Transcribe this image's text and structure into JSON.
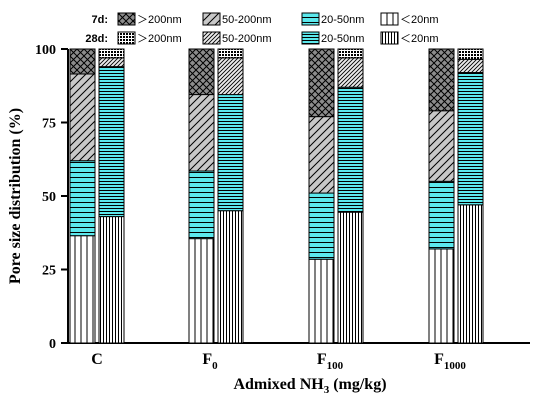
{
  "chart_data": {
    "type": "bar",
    "stacked": true,
    "ylabel": "Pore size distribution (%)",
    "xlabel": {
      "main": "Admixed NH",
      "sub": "3",
      "suffix": " (mg/kg)"
    },
    "ylim": [
      0,
      100
    ],
    "yticks": [
      0,
      25,
      50,
      75,
      100
    ],
    "categories": [
      {
        "main": "C",
        "sub": ""
      },
      {
        "main": "F",
        "sub": "0"
      },
      {
        "main": "F",
        "sub": "100"
      },
      {
        "main": "F",
        "sub": "1000"
      }
    ],
    "groups": [
      {
        "label": "7d:",
        "sublabels": [
          "＞200nm",
          "50-200nm",
          "20-50nm",
          "＜20nm"
        ]
      },
      {
        "label": "28d:",
        "sublabels": [
          "＞200nm",
          "50-200nm",
          "20-50nm",
          "＜20nm"
        ]
      }
    ],
    "series": [
      {
        "group": "7d",
        "size": "<20nm",
        "pattern": "vlines-wide",
        "color": "#ffffff",
        "values": [
          36.5,
          35.5,
          28.5,
          32
        ]
      },
      {
        "group": "7d",
        "size": "20-50nm",
        "pattern": "hlines",
        "color": "#5ce8ec",
        "values": [
          25.5,
          23,
          22.5,
          23
        ]
      },
      {
        "group": "7d",
        "size": "50-200nm",
        "pattern": "diag-wide",
        "color": "#c8c8c8",
        "values": [
          29.5,
          26,
          26,
          24
        ]
      },
      {
        "group": "7d",
        "size": ">200nm",
        "pattern": "cross",
        "color": "#909090",
        "values": [
          8.5,
          15.5,
          23,
          21
        ]
      },
      {
        "group": "28d",
        "size": "<20nm",
        "pattern": "vlines-dense",
        "color": "#ffffff",
        "values": [
          43,
          45,
          44.5,
          47
        ]
      },
      {
        "group": "28d",
        "size": "20-50nm",
        "pattern": "hlines-dense",
        "color": "#5ce8ec",
        "values": [
          51,
          39.5,
          42.5,
          45
        ]
      },
      {
        "group": "28d",
        "size": "50-200nm",
        "pattern": "diag-dense",
        "color": "#e6e6e6",
        "values": [
          3,
          12.5,
          10,
          4.5
        ]
      },
      {
        "group": "28d",
        "size": ">200nm",
        "pattern": "dots",
        "color": "#606060",
        "values": [
          3,
          3,
          3,
          3.5
        ]
      }
    ],
    "grid": false,
    "legend_position": "top"
  }
}
